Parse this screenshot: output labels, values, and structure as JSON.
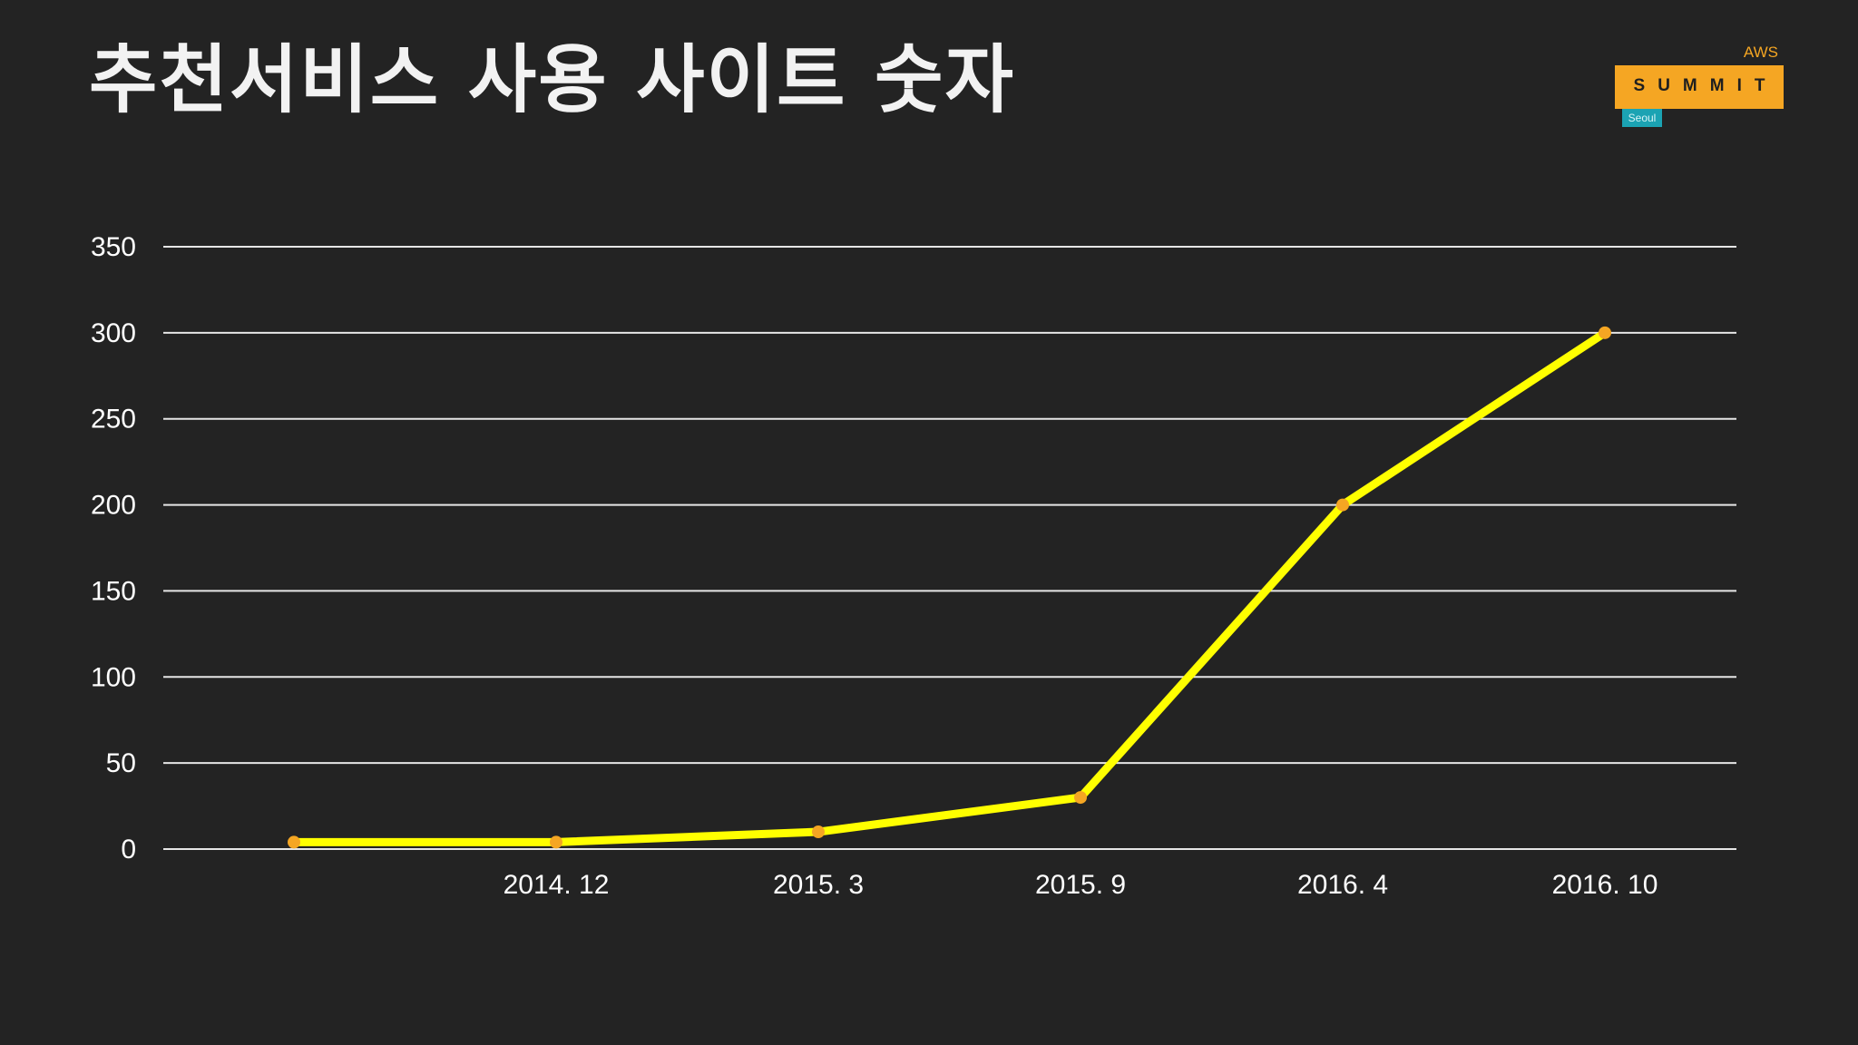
{
  "slide": {
    "title": "추천서비스 사용 사이트 숫자"
  },
  "logo": {
    "top_text": "AWS",
    "main_text": "SUMMIT",
    "sub_text": "Seoul",
    "accent_color": "#f5a623",
    "sub_color": "#1ba3b3"
  },
  "chart_data": {
    "type": "line",
    "title": "",
    "xlabel": "",
    "ylabel": "",
    "categories": [
      "",
      "2014. 12",
      "2015. 3",
      "2015. 9",
      "2016. 4",
      "2016. 10"
    ],
    "series": [
      {
        "values": [
          4,
          4,
          10,
          30,
          200,
          300
        ],
        "line_color": "#ffff00",
        "marker_color": "#f5a623"
      }
    ],
    "ylim": [
      0,
      350
    ],
    "yticks": [
      0,
      50,
      100,
      150,
      200,
      250,
      300,
      350
    ],
    "grid": true,
    "legend": "none",
    "background": "#232323"
  }
}
